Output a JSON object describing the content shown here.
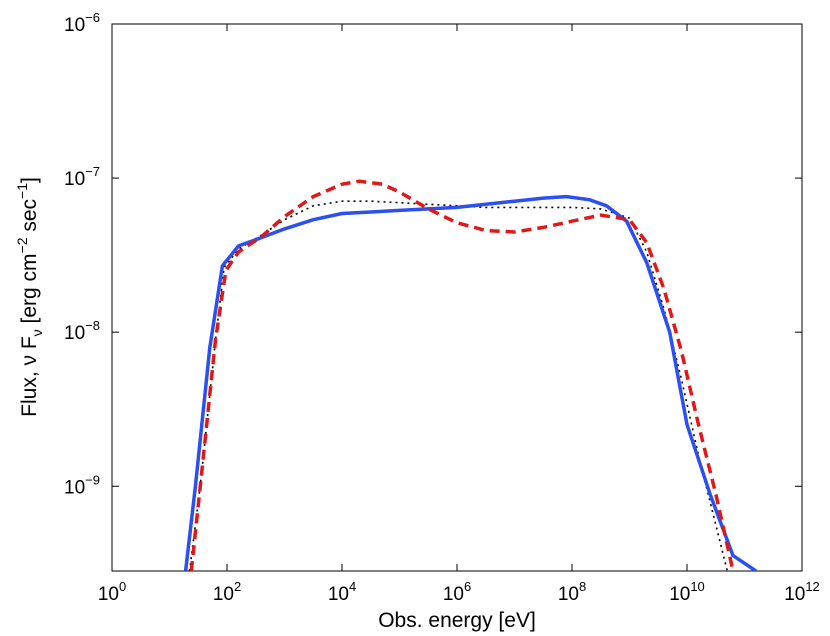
{
  "chart_data": {
    "type": "line",
    "title": "",
    "xlabel": "Obs. energy [eV]",
    "ylabel": {
      "prefix": "Flux, ν F",
      "sub": "ν",
      "bracket_open": " [erg cm",
      "sup1": "−2",
      "mid": " sec",
      "sup2": "−1",
      "bracket_close": "]"
    },
    "xscale": "log",
    "yscale": "log",
    "xlim_exp": [
      0,
      12
    ],
    "ylim_exp": [
      -9.55,
      -6
    ],
    "x_ticks": [
      {
        "base": "10",
        "exp": "0",
        "e": 0
      },
      {
        "base": "10",
        "exp": "2",
        "e": 2
      },
      {
        "base": "10",
        "exp": "4",
        "e": 4
      },
      {
        "base": "10",
        "exp": "6",
        "e": 6
      },
      {
        "base": "10",
        "exp": "8",
        "e": 8
      },
      {
        "base": "10",
        "exp": "10",
        "e": 10
      },
      {
        "base": "10",
        "exp": "12",
        "e": 12
      }
    ],
    "y_ticks": [
      {
        "base": "10",
        "exp": "−9",
        "e": -9
      },
      {
        "base": "10",
        "exp": "−8",
        "e": -8
      },
      {
        "base": "10",
        "exp": "−7",
        "e": -7
      },
      {
        "base": "10",
        "exp": "−6",
        "e": -6
      }
    ],
    "grid": false,
    "legend": "none",
    "series": [
      {
        "name": "solid",
        "color": "#2b4ff0",
        "style": "solid",
        "log_x": [
          1.28,
          1.45,
          1.7,
          1.92,
          2.2,
          2.5,
          3,
          3.5,
          4,
          4.5,
          5,
          5.5,
          6,
          6.5,
          7,
          7.5,
          7.9,
          8.3,
          8.6,
          8.95,
          9.3,
          9.7,
          10,
          10.4,
          10.8,
          11.2
        ],
        "log_y": [
          -9.55,
          -9.0,
          -8.1,
          -7.57,
          -7.44,
          -7.4,
          -7.33,
          -7.27,
          -7.23,
          -7.22,
          -7.21,
          -7.2,
          -7.19,
          -7.17,
          -7.15,
          -7.13,
          -7.12,
          -7.14,
          -7.18,
          -7.28,
          -7.55,
          -8.0,
          -8.6,
          -9.05,
          -9.45,
          -9.55
        ]
      },
      {
        "name": "dashed",
        "color": "#e01818",
        "style": "dashed",
        "log_x": [
          1.38,
          1.55,
          1.8,
          1.98,
          2.2,
          2.6,
          3,
          3.5,
          4,
          4.3,
          4.7,
          5,
          5.5,
          6,
          6.5,
          7,
          7.5,
          8,
          8.5,
          9,
          9.3,
          9.6,
          9.9,
          10.2,
          10.5,
          10.8
        ],
        "log_y": [
          -9.55,
          -8.95,
          -8.05,
          -7.6,
          -7.48,
          -7.38,
          -7.25,
          -7.12,
          -7.04,
          -7.02,
          -7.04,
          -7.09,
          -7.2,
          -7.29,
          -7.34,
          -7.35,
          -7.32,
          -7.28,
          -7.24,
          -7.27,
          -7.42,
          -7.72,
          -8.12,
          -8.6,
          -9.05,
          -9.55
        ]
      },
      {
        "name": "dotted",
        "color": "#000000",
        "style": "dotted",
        "log_x": [
          1.35,
          1.55,
          1.8,
          1.95,
          2.2,
          2.6,
          3,
          3.5,
          4,
          4.5,
          5,
          5.5,
          6,
          6.5,
          7,
          7.5,
          8,
          8.5,
          9,
          9.3,
          9.6,
          9.9,
          10.2,
          10.5,
          10.7
        ],
        "log_y": [
          -9.55,
          -8.95,
          -8.05,
          -7.58,
          -7.46,
          -7.37,
          -7.27,
          -7.18,
          -7.15,
          -7.15,
          -7.16,
          -7.17,
          -7.18,
          -7.19,
          -7.19,
          -7.19,
          -7.19,
          -7.2,
          -7.26,
          -7.48,
          -7.85,
          -8.3,
          -8.8,
          -9.25,
          -9.55
        ]
      }
    ]
  }
}
